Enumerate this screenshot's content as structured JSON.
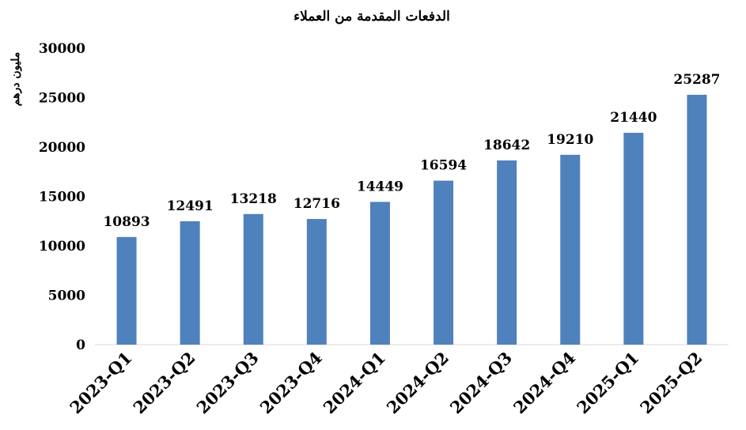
{
  "chart_data": {
    "type": "bar",
    "title": "الدفعات المقدمة من العملاء",
    "ylabel": "مليون درهم",
    "xlabel": "",
    "categories": [
      "2023-Q1",
      "2023-Q2",
      "2023-Q3",
      "2023-Q4",
      "2024-Q1",
      "2024-Q2",
      "2024-Q3",
      "2024-Q4",
      "2025-Q1",
      "2025-Q2"
    ],
    "values": [
      10893,
      12491,
      13218,
      12716,
      14449,
      16594,
      18642,
      19210,
      21440,
      25287
    ],
    "ylim": [
      0,
      30000
    ],
    "yticks": [
      0,
      5000,
      10000,
      15000,
      20000,
      25000,
      30000
    ],
    "grid": false,
    "legend": "none",
    "bar_color": "#4f81bd"
  }
}
